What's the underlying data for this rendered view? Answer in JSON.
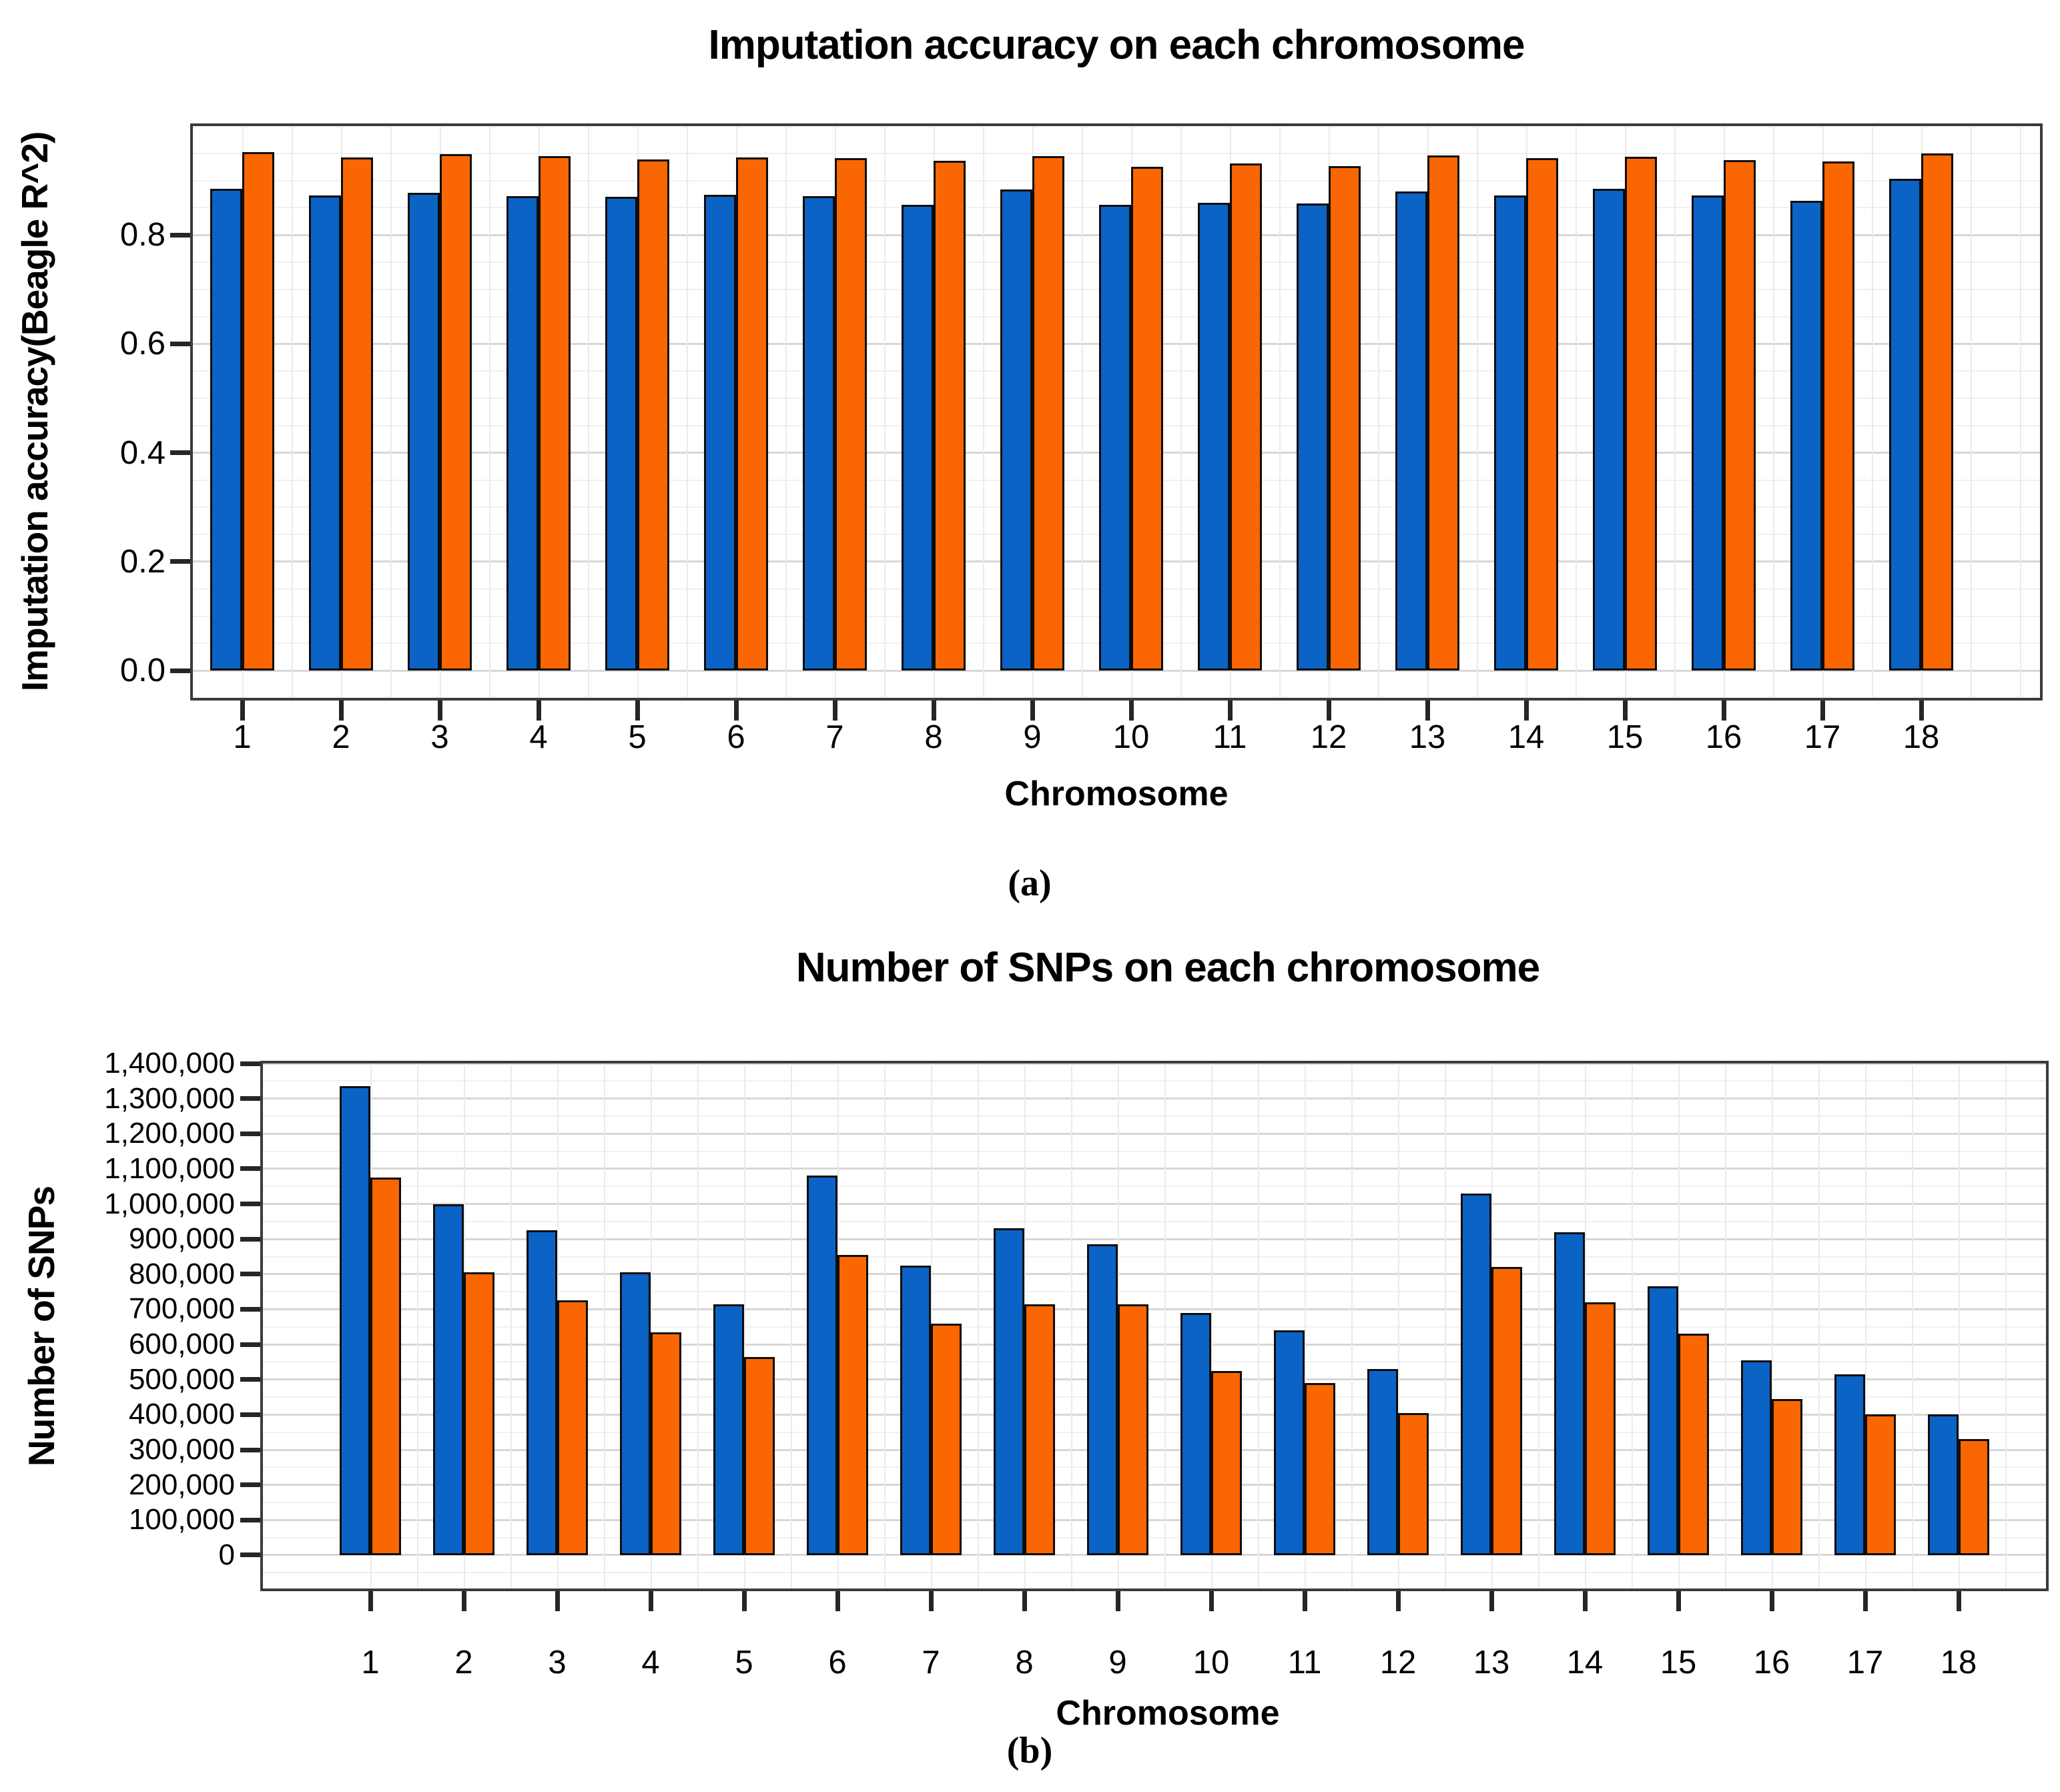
{
  "colors": {
    "bar_blue": "#0b63c5",
    "bar_orange": "#fa6602",
    "bar_outline": "#0d0d0d",
    "plot_border": "#3b3b3b",
    "grid_major": "#d7d7d7",
    "grid_minor": "#f0f0f0",
    "tick": "#262626",
    "text": "#000000"
  },
  "chart_data": [
    {
      "type": "bar",
      "title": "Imputation accuracy on each chromosome",
      "xlabel": "Chromosome",
      "ylabel": "Imputation accuracy(Beagle R^2)",
      "panel_label": "(a)",
      "legend": "none",
      "grid": "on",
      "ylim": [
        0,
        1.0
      ],
      "categories": [
        "1",
        "2",
        "3",
        "4",
        "5",
        "6",
        "7",
        "8",
        "9",
        "10",
        "11",
        "12",
        "13",
        "14",
        "15",
        "16",
        "17",
        "18"
      ],
      "yticks": [
        {
          "value": 0.0,
          "label": "0.0"
        },
        {
          "value": 0.2,
          "label": "0.2"
        },
        {
          "value": 0.4,
          "label": "0.4"
        },
        {
          "value": 0.6,
          "label": "0.6"
        },
        {
          "value": 0.8,
          "label": "0.8"
        }
      ],
      "series": [
        {
          "name": "series_blue",
          "color": "#0b63c5",
          "values": [
            0.885,
            0.872,
            0.878,
            0.871,
            0.87,
            0.874,
            0.871,
            0.856,
            0.884,
            0.856,
            0.859,
            0.858,
            0.88,
            0.872,
            0.885,
            0.872,
            0.863,
            0.903
          ]
        },
        {
          "name": "series_orange",
          "color": "#fa6602",
          "values": [
            0.952,
            0.942,
            0.948,
            0.945,
            0.939,
            0.943,
            0.941,
            0.936,
            0.945,
            0.925,
            0.931,
            0.927,
            0.946,
            0.941,
            0.944,
            0.937,
            0.935,
            0.95
          ]
        }
      ]
    },
    {
      "type": "bar",
      "title": "Number of SNPs on each chromosome",
      "xlabel": "Chromosome",
      "ylabel": "Number of SNPs",
      "panel_label": "(b)",
      "legend": "none",
      "grid": "on",
      "ylim": [
        0,
        1400000
      ],
      "categories": [
        "1",
        "2",
        "3",
        "4",
        "5",
        "6",
        "7",
        "8",
        "9",
        "10",
        "11",
        "12",
        "13",
        "14",
        "15",
        "16",
        "17",
        "18"
      ],
      "yticks": [
        {
          "value": 0,
          "label": "0"
        },
        {
          "value": 100000,
          "label": "100,000"
        },
        {
          "value": 200000,
          "label": "200,000"
        },
        {
          "value": 300000,
          "label": "300,000"
        },
        {
          "value": 400000,
          "label": "400,000"
        },
        {
          "value": 500000,
          "label": "500,000"
        },
        {
          "value": 600000,
          "label": "600,000"
        },
        {
          "value": 700000,
          "label": "700,000"
        },
        {
          "value": 800000,
          "label": "800,000"
        },
        {
          "value": 900000,
          "label": "900,000"
        },
        {
          "value": 1000000,
          "label": "1,000,000"
        },
        {
          "value": 1100000,
          "label": "1,100,000"
        },
        {
          "value": 1200000,
          "label": "1,200,000"
        },
        {
          "value": 1300000,
          "label": "1,300,000"
        },
        {
          "value": 1400000,
          "label": "1,400,000"
        }
      ],
      "series": [
        {
          "name": "series_blue",
          "color": "#0b63c5",
          "values": [
            1335000,
            1000000,
            925000,
            805000,
            715000,
            1080000,
            825000,
            930000,
            885000,
            690000,
            640000,
            530000,
            1030000,
            920000,
            765000,
            555000,
            515000,
            400000
          ]
        },
        {
          "name": "series_orange",
          "color": "#fa6602",
          "values": [
            1075000,
            805000,
            725000,
            635000,
            565000,
            855000,
            660000,
            715000,
            715000,
            525000,
            490000,
            405000,
            820000,
            720000,
            630000,
            445000,
            400000,
            330000
          ]
        }
      ]
    }
  ]
}
